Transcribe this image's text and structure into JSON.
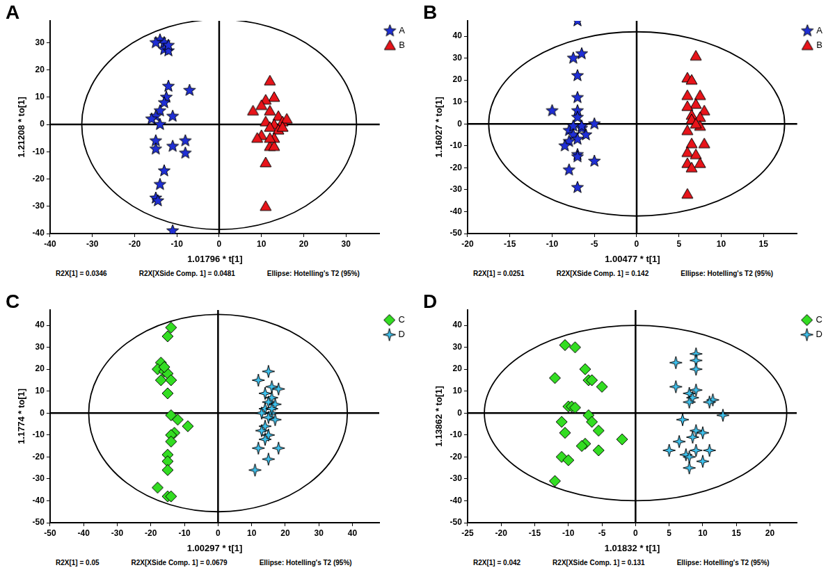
{
  "chart_data": [
    {
      "title": "A",
      "type": "scatter",
      "x_label": "1.01796 * t[1]",
      "y_label": "1.21208 * to[1]",
      "notes": [
        "R2X[1] = 0.0346",
        "R2X[XSide Comp. 1] = 0.0481",
        "Ellipse: Hotelling's T2 (95%)"
      ],
      "xlim": [
        -40,
        38
      ],
      "ylim": [
        -40,
        38
      ],
      "xticks": [
        -40,
        -30,
        -20,
        -10,
        0,
        10,
        20,
        30
      ],
      "yticks": [
        -40,
        -30,
        -20,
        -10,
        0,
        10,
        20,
        30
      ],
      "grid": false,
      "legend": "right",
      "ellipse": {
        "x_radius": 32.5,
        "y_radius": 38.5
      },
      "series": [
        {
          "name": "A",
          "color": "#1f2fd6",
          "marker": "star",
          "x": [
            -14,
            -13,
            -15,
            -13,
            -12,
            -12,
            -12.5,
            -13,
            -14,
            -15,
            -16,
            -11,
            -7,
            -15,
            -15,
            -11,
            -8,
            -8,
            -13,
            -14,
            -15,
            -14.5,
            -11,
            -14,
            -12
          ],
          "y": [
            31,
            30,
            30,
            27.5,
            27,
            14,
            10,
            8,
            5,
            3,
            2,
            3,
            12.5,
            -6,
            -9,
            -8,
            -6,
            -10.5,
            -17,
            -22,
            -27,
            -28,
            -39,
            0,
            29
          ]
        },
        {
          "name": "B",
          "color": "#e8141a",
          "marker": "triangle",
          "x": [
            12,
            13,
            11,
            10,
            12,
            8,
            14,
            15,
            13,
            11,
            12,
            16,
            10,
            14,
            13,
            9,
            12,
            13,
            11,
            11,
            12,
            15
          ],
          "y": [
            16,
            10,
            9,
            7,
            5,
            5,
            3,
            1,
            0,
            1,
            -1,
            2,
            -4,
            -2,
            -5,
            -5,
            -8,
            -8,
            -14,
            -30,
            -5,
            -1
          ]
        }
      ]
    },
    {
      "title": "B",
      "type": "scatter",
      "x_label": "1.00477 * t[1]",
      "y_label": "1.16027 * to[1]",
      "notes": [
        "R2X[1] = 0.0251",
        "R2X[XSide Comp. 1] = 0.142",
        "Ellipse: Hotelling's T2 (95%)"
      ],
      "xlim": [
        -20,
        19
      ],
      "ylim": [
        -50,
        47
      ],
      "xticks": [
        -20,
        -15,
        -10,
        -5,
        0,
        5,
        10,
        15
      ],
      "yticks": [
        -50,
        -40,
        -30,
        -20,
        -10,
        0,
        10,
        20,
        30,
        40
      ],
      "grid": false,
      "legend": "right",
      "ellipse": {
        "x_radius": 17.5,
        "y_radius": 42
      },
      "series": [
        {
          "name": "A",
          "color": "#1f2fd6",
          "marker": "star",
          "x": [
            -7,
            -6.5,
            -7.5,
            -7,
            -7,
            -10,
            -7,
            -7,
            -5,
            -6.5,
            -8,
            -7.5,
            -6,
            -7,
            -8,
            -8.5,
            -7,
            -7,
            -5,
            -8,
            -7,
            -6.5,
            -7.5
          ],
          "y": [
            47,
            32,
            30,
            22,
            12,
            6,
            6,
            3,
            0,
            -2,
            -3,
            -5,
            -5,
            -7,
            -8,
            -10,
            -14,
            -15,
            -17,
            -21,
            -29,
            -1,
            -1
          ]
        },
        {
          "name": "B",
          "color": "#e8141a",
          "marker": "triangle",
          "x": [
            7,
            6,
            6.5,
            7.5,
            6,
            7,
            6,
            8,
            6.5,
            7.5,
            6.5,
            7.5,
            6,
            8,
            6.5,
            6,
            7,
            6,
            7.5,
            6.5,
            6,
            7
          ],
          "y": [
            31,
            21,
            20,
            13,
            13,
            9,
            8,
            6,
            4,
            3,
            2,
            -1,
            -3,
            -9,
            -9,
            -13,
            -14,
            -18,
            -18,
            -20,
            -32,
            0
          ]
        }
      ]
    },
    {
      "title": "C",
      "type": "scatter",
      "x_label": "1.00297 * t[1]",
      "y_label": "1.1774 * to[1]",
      "notes": [
        "R2X[1] = 0.05",
        "R2X[XSide Comp. 1] = 0.0679",
        "Ellipse: Hotelling's T2 (95%)"
      ],
      "xlim": [
        -50,
        48
      ],
      "ylim": [
        -50,
        47
      ],
      "xticks": [
        -50,
        -40,
        -30,
        -20,
        -10,
        0,
        10,
        20,
        30,
        40
      ],
      "yticks": [
        -50,
        -40,
        -30,
        -20,
        -10,
        0,
        10,
        20,
        30,
        40
      ],
      "grid": false,
      "legend": "right",
      "ellipse": {
        "x_radius": 38.5,
        "y_radius": 45
      },
      "series": [
        {
          "name": "C",
          "color": "#33dd22",
          "marker": "diamond",
          "x": [
            -14,
            -15,
            -17,
            -18,
            -16,
            -15,
            -17,
            -14,
            -15,
            -14,
            -12,
            -9,
            -13,
            -14,
            -14,
            -15,
            -15,
            -15,
            -18,
            -15,
            -14,
            -16
          ],
          "y": [
            39,
            35,
            23,
            20,
            19,
            18,
            15,
            15,
            9,
            -1,
            -3,
            -6,
            -9,
            -10,
            -13,
            -19,
            -22,
            -26,
            -34,
            -38,
            -38,
            21
          ]
        },
        {
          "name": "D",
          "color": "#3ec3f0",
          "marker": "star4",
          "x": [
            15,
            12,
            16,
            18,
            14,
            16,
            15,
            17,
            14,
            16,
            13,
            15,
            17,
            14,
            13,
            15,
            14,
            18,
            12,
            15,
            11,
            16
          ],
          "y": [
            19,
            15,
            12,
            11,
            9,
            7,
            5,
            4,
            2,
            0,
            0,
            -2,
            -3,
            -6,
            -8,
            -10,
            -12,
            -16,
            -16,
            -21,
            -26,
            2
          ]
        }
      ]
    },
    {
      "title": "D",
      "type": "scatter",
      "x_label": "1.01832 * t[1]",
      "y_label": "1.13862 * to[1]",
      "notes": [
        "R2X[1] = 0.042",
        "R2X[XSide Comp. 1] = 0.131",
        "Ellipse: Hotelling's T2 (95%)"
      ],
      "xlim": [
        -25,
        24
      ],
      "ylim": [
        -50,
        47
      ],
      "xticks": [
        -25,
        -20,
        -15,
        -10,
        -5,
        0,
        5,
        10,
        15,
        20
      ],
      "yticks": [
        -50,
        -40,
        -30,
        -20,
        -10,
        0,
        10,
        20,
        30,
        40
      ],
      "grid": false,
      "legend": "right",
      "ellipse": {
        "x_radius": 22.5,
        "y_radius": 40
      },
      "series": [
        {
          "name": "C",
          "color": "#33dd22",
          "marker": "diamond",
          "x": [
            -10.5,
            -9,
            -12,
            -7.5,
            -7,
            -6.5,
            -5,
            -10,
            -9.5,
            -9,
            -11,
            -7,
            -6.5,
            -10.5,
            -5.5,
            -7.5,
            -8,
            -5.5,
            -2,
            -11,
            -10,
            -12
          ],
          "y": [
            31,
            30,
            16,
            20,
            15,
            15,
            12,
            3,
            3,
            2.5,
            -4,
            -1,
            -4,
            -9,
            -8,
            -14,
            -15,
            -17,
            -12,
            -20,
            -21.5,
            -31
          ]
        },
        {
          "name": "D",
          "color": "#3ec3f0",
          "marker": "star4",
          "x": [
            9,
            9,
            6,
            9,
            6,
            8,
            9,
            8.5,
            8,
            11.5,
            11,
            13,
            7,
            9,
            8.5,
            10,
            5,
            6.5,
            7.5,
            8,
            10,
            11,
            8,
            9
          ],
          "y": [
            27,
            24,
            23,
            20,
            12,
            9,
            10.5,
            7,
            5,
            6,
            5,
            -1,
            -3,
            -8,
            -11,
            -9,
            -17,
            -13,
            -19,
            -20,
            -22,
            -17,
            -25,
            -17
          ]
        }
      ]
    }
  ]
}
